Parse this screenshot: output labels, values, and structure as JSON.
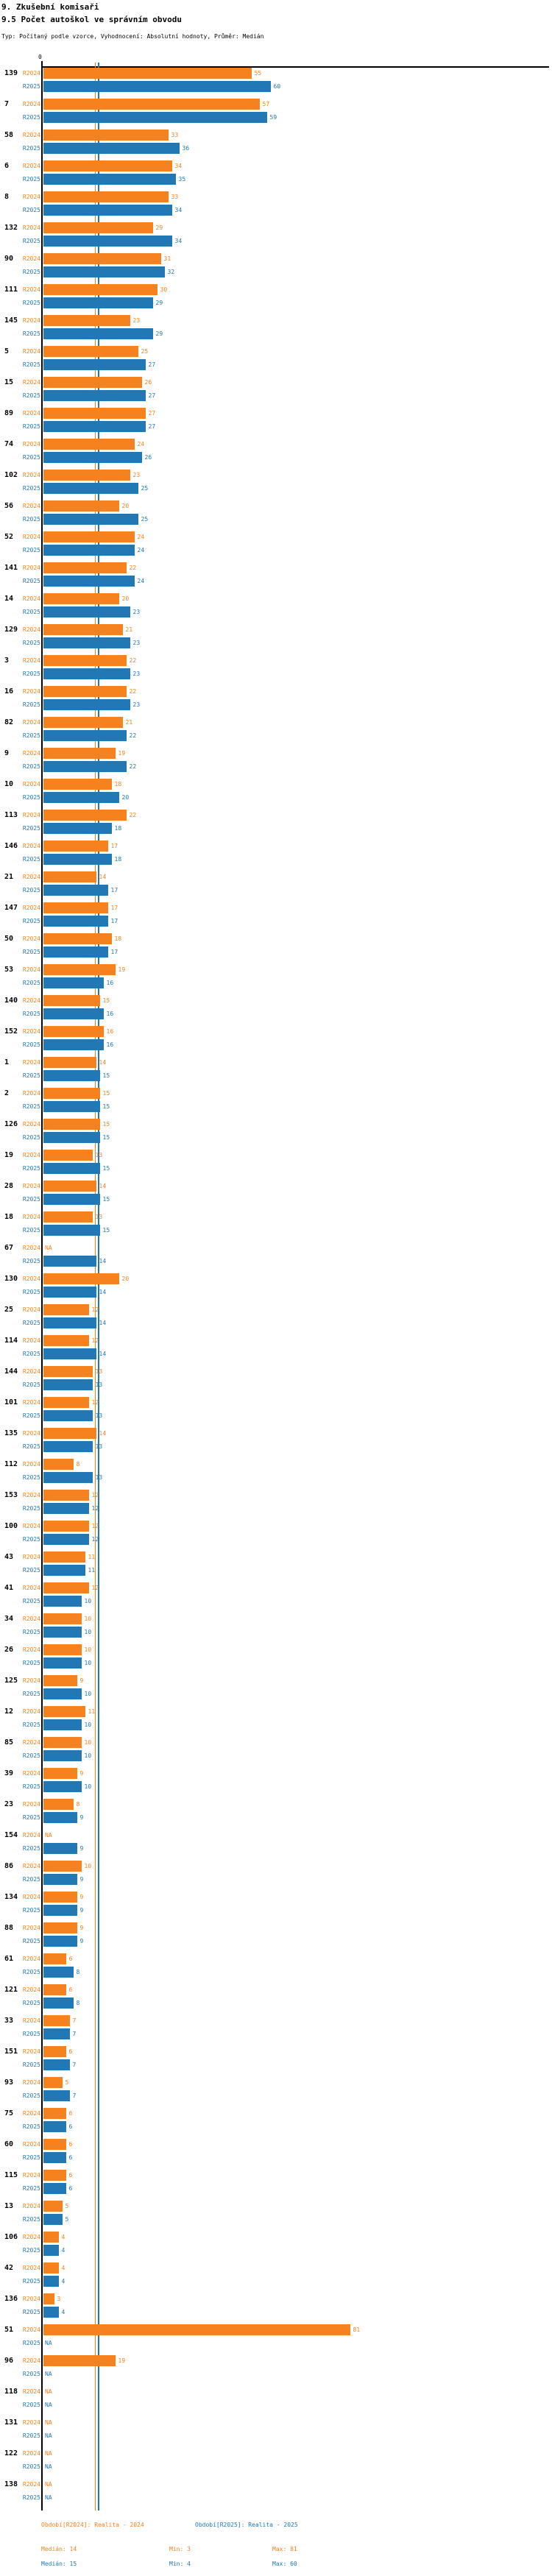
{
  "header": {
    "title1": "9. Zkušební komisaři",
    "title2": "9.5 Počet autoškol ve správním obvodu",
    "subtitle": "Typ: Počítaný podle vzorce, Vyhodnocení: Absolutní hodnoty, Průměr: Medián"
  },
  "axis": {
    "zero_label": "0"
  },
  "colors": {
    "r2024": "#F5821E",
    "r2025": "#2278B5",
    "axis": "#000000"
  },
  "footer": {
    "legend_r2024": "Období[R2024]: Realita - 2024",
    "legend_r2025": "Období[R2025]: Realita - 2025",
    "median_r2024": "Medián: 14",
    "min_r2024": "Min: 3",
    "max_r2024": "Max: 81",
    "median_r2025": "Medián: 15",
    "min_r2025": "Min: 4",
    "max_r2025": "Max: 60"
  },
  "chart_data": {
    "type": "bar",
    "orientation": "horizontal",
    "title": "9.5 Počet autoškol ve správním obvodu",
    "xlabel": "",
    "ylabel": "",
    "xlim": [
      0,
      134
    ],
    "na_label": "NA",
    "legend": [
      "R2024",
      "R2025"
    ],
    "reference_lines": [
      {
        "series": "R2024",
        "value": 14,
        "label": "Medián"
      },
      {
        "series": "R2025",
        "value": 15,
        "label": "Medián"
      }
    ],
    "stats": {
      "R2024": {
        "median": 14,
        "min": 3,
        "max": 81
      },
      "R2025": {
        "median": 15,
        "min": 4,
        "max": 60
      }
    },
    "categories": [
      "139",
      "7",
      "58",
      "6",
      "8",
      "132",
      "90",
      "111",
      "145",
      "5",
      "15",
      "89",
      "74",
      "102",
      "56",
      "52",
      "141",
      "14",
      "129",
      "3",
      "16",
      "82",
      "9",
      "10",
      "113",
      "146",
      "21",
      "147",
      "50",
      "53",
      "140",
      "152",
      "1",
      "2",
      "126",
      "19",
      "28",
      "18",
      "67",
      "130",
      "25",
      "114",
      "144",
      "101",
      "135",
      "112",
      "153",
      "100",
      "43",
      "41",
      "34",
      "26",
      "125",
      "12",
      "85",
      "39",
      "23",
      "154",
      "86",
      "134",
      "88",
      "61",
      "121",
      "33",
      "151",
      "93",
      "75",
      "60",
      "115",
      "13",
      "106",
      "42",
      "136",
      "51",
      "96",
      "118",
      "131",
      "122",
      "138"
    ],
    "series": [
      {
        "name": "R2024",
        "values": [
          55,
          57,
          33,
          34,
          33,
          29,
          31,
          30,
          23,
          25,
          26,
          27,
          24,
          23,
          20,
          24,
          22,
          20,
          21,
          22,
          22,
          21,
          19,
          18,
          22,
          17,
          14,
          17,
          18,
          19,
          15,
          16,
          14,
          15,
          15,
          13,
          14,
          13,
          null,
          20,
          12,
          12,
          13,
          12,
          14,
          8,
          12,
          12,
          11,
          12,
          10,
          10,
          9,
          11,
          10,
          9,
          8,
          null,
          10,
          9,
          9,
          6,
          6,
          7,
          6,
          5,
          6,
          6,
          6,
          5,
          4,
          4,
          3,
          81,
          19,
          null,
          null,
          null,
          null
        ]
      },
      {
        "name": "R2025",
        "values": [
          60,
          59,
          36,
          35,
          34,
          34,
          32,
          29,
          29,
          27,
          27,
          27,
          26,
          25,
          25,
          24,
          24,
          23,
          23,
          23,
          23,
          22,
          22,
          20,
          18,
          18,
          17,
          17,
          17,
          16,
          16,
          16,
          15,
          15,
          15,
          15,
          15,
          15,
          14,
          14,
          14,
          14,
          13,
          13,
          13,
          13,
          12,
          12,
          11,
          10,
          10,
          10,
          10,
          10,
          10,
          10,
          9,
          9,
          9,
          9,
          9,
          8,
          8,
          7,
          7,
          7,
          6,
          6,
          6,
          5,
          4,
          4,
          4,
          null,
          null,
          null,
          null,
          null,
          null
        ]
      }
    ]
  }
}
